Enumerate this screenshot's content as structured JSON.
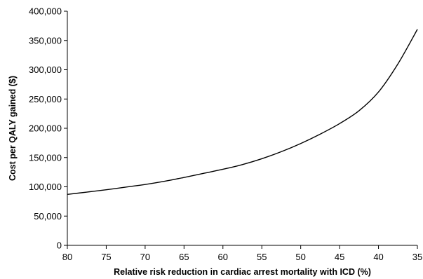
{
  "chart_data": {
    "type": "line",
    "title": "",
    "xlabel": "Relative risk reduction in cardiac arrest mortality with ICD (%)",
    "ylabel": "Cost per QALY gained ($)",
    "x_reversed": true,
    "xlim": [
      80,
      35
    ],
    "ylim": [
      0,
      400000
    ],
    "x_ticks": [
      80,
      75,
      70,
      65,
      60,
      55,
      50,
      45,
      40,
      35
    ],
    "x_tick_labels": [
      "80",
      "75",
      "70",
      "65",
      "60",
      "55",
      "50",
      "45",
      "40",
      "35"
    ],
    "y_ticks": [
      0,
      50000,
      100000,
      150000,
      200000,
      250000,
      300000,
      350000,
      400000
    ],
    "y_tick_labels": [
      "0",
      "50,000",
      "100,000",
      "150,000",
      "200,000",
      "250,000",
      "300,000",
      "350,000",
      "400,000"
    ],
    "grid": false,
    "legend": "none",
    "line_color": "#000000",
    "series": [
      {
        "x": [
          80,
          77.5,
          75,
          72.5,
          70,
          67.5,
          65,
          62.5,
          60,
          57.5,
          55,
          52.5,
          50,
          47.5,
          45,
          42.5,
          40,
          37.5,
          35
        ],
        "values": [
          87000,
          91000,
          95000,
          99500,
          104000,
          109500,
          116000,
          123000,
          130000,
          138000,
          148000,
          160000,
          174000,
          190000,
          208000,
          230000,
          262000,
          310000,
          369000
        ]
      }
    ]
  }
}
